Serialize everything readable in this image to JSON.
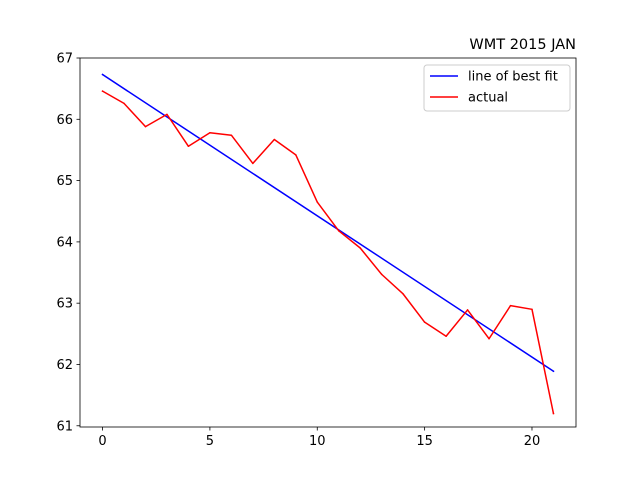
{
  "chart_data": {
    "type": "line",
    "title": "WMT 2015 JAN",
    "xlabel": "",
    "ylabel": "",
    "xlim": [
      -1.05,
      22.05
    ],
    "ylim": [
      60.98,
      67.0
    ],
    "xticks": [
      0,
      5,
      10,
      15,
      20
    ],
    "yticks": [
      61,
      62,
      63,
      64,
      65,
      66,
      67
    ],
    "grid": false,
    "legend_position": "top-right",
    "series": [
      {
        "name": "line of best fit",
        "color": "#0000ff",
        "x": [
          0,
          21
        ],
        "y": [
          66.73,
          61.89
        ]
      },
      {
        "name": "actual",
        "color": "#ff0000",
        "x": [
          0,
          1,
          2,
          3,
          4,
          5,
          6,
          7,
          8,
          9,
          10,
          11,
          12,
          13,
          14,
          15,
          16,
          17,
          18,
          19,
          20,
          21
        ],
        "y": [
          66.46,
          66.26,
          65.88,
          66.08,
          65.56,
          65.78,
          65.74,
          65.28,
          65.67,
          65.42,
          64.65,
          64.18,
          63.9,
          63.47,
          63.15,
          62.69,
          62.46,
          62.89,
          62.42,
          62.96,
          62.9,
          61.2
        ]
      }
    ]
  }
}
